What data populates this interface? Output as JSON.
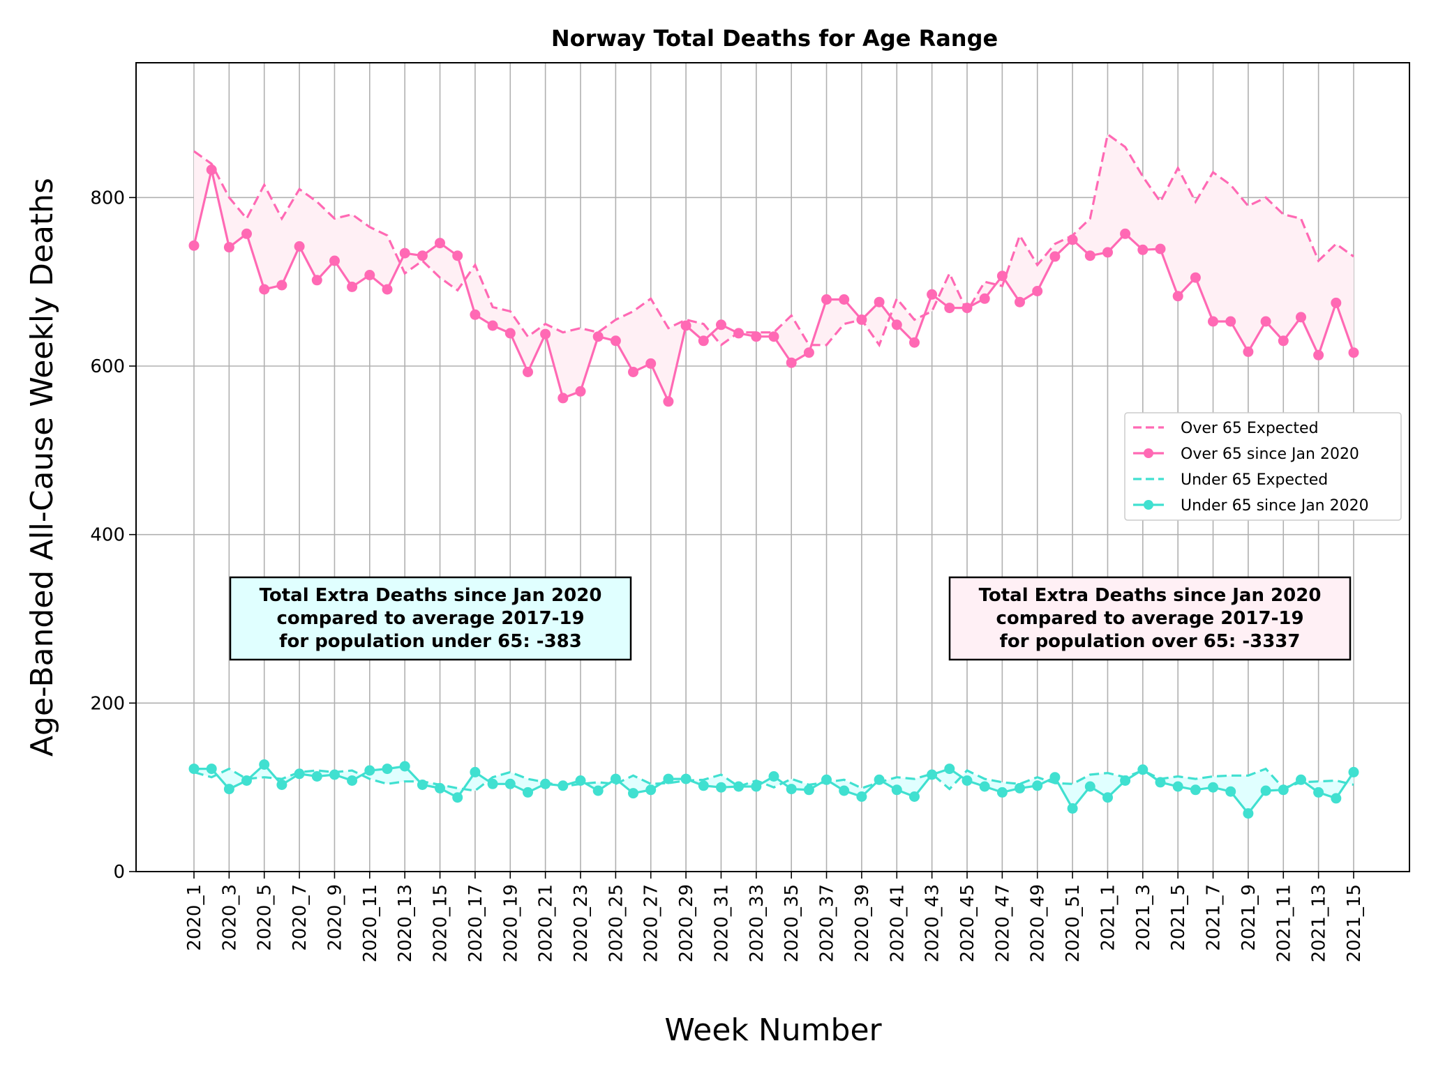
{
  "chart_data": {
    "type": "line",
    "title": "Norway Total Deaths for Age Range",
    "xlabel": "Week Number",
    "ylabel": "Age-Banded All-Cause Weekly Deaths",
    "ylim": [
      0,
      960
    ],
    "yticks": [
      0,
      200,
      400,
      600,
      800
    ],
    "grid": true,
    "legend_position": "center-right",
    "xtick_labels": [
      "2020_1",
      "2020_3",
      "2020_5",
      "2020_7",
      "2020_9",
      "2020_11",
      "2020_13",
      "2020_15",
      "2020_17",
      "2020_19",
      "2020_21",
      "2020_23",
      "2020_25",
      "2020_27",
      "2020_29",
      "2020_31",
      "2020_33",
      "2020_35",
      "2020_37",
      "2020_39",
      "2020_41",
      "2020_43",
      "2020_45",
      "2020_47",
      "2020_49",
      "2020_51",
      "2021_1",
      "2021_3",
      "2021_5",
      "2021_7",
      "2021_9",
      "2021_11",
      "2021_13",
      "2021_15"
    ],
    "series": [
      {
        "name": "Over 65 Expected",
        "style": "dashed",
        "color": "#ff69b4",
        "values": [
          855,
          840,
          800,
          775,
          815,
          775,
          810,
          795,
          775,
          780,
          765,
          755,
          710,
          725,
          705,
          690,
          720,
          670,
          665,
          635,
          650,
          640,
          645,
          640,
          655,
          665,
          680,
          645,
          655,
          650,
          625,
          640,
          640,
          640,
          660,
          625,
          625,
          650,
          655,
          625,
          680,
          655,
          665,
          710,
          665,
          700,
          695,
          755,
          720,
          745,
          755,
          775,
          875,
          860,
          825,
          795,
          835,
          795,
          830,
          815,
          790,
          800,
          780,
          775,
          725,
          745,
          730
        ]
      },
      {
        "name": "Over 65 since Jan 2020",
        "style": "solid-marker",
        "color": "#ff69b4",
        "values": [
          743,
          833,
          741,
          757,
          691,
          696,
          742,
          702,
          725,
          694,
          708,
          691,
          734,
          731,
          746,
          731,
          661,
          648,
          639,
          593,
          638,
          562,
          570,
          635,
          630,
          593,
          603,
          558,
          648,
          630,
          649,
          639,
          635,
          635,
          604,
          616,
          679,
          679,
          655,
          676,
          649,
          628,
          685,
          669,
          669,
          680,
          707,
          676,
          689,
          730,
          750,
          731,
          735,
          757,
          738,
          739,
          683,
          705,
          653,
          653,
          617,
          653,
          630,
          658,
          613,
          675,
          616
        ]
      },
      {
        "name": "Under 65 Expected",
        "style": "dashed",
        "color": "#40e0d0",
        "values": [
          118,
          112,
          122,
          110,
          112,
          110,
          118,
          120,
          118,
          120,
          110,
          104,
          107,
          107,
          103,
          99,
          96,
          112,
          118,
          110,
          106,
          101,
          104,
          106,
          104,
          114,
          104,
          105,
          108,
          109,
          115,
          101,
          108,
          100,
          110,
          103,
          106,
          109,
          99,
          106,
          112,
          110,
          116,
          98,
          120,
          110,
          106,
          104,
          112,
          105,
          104,
          115,
          117,
          112,
          120,
          110,
          113,
          110,
          113,
          114,
          114,
          122,
          99,
          106,
          107,
          108,
          103
        ]
      },
      {
        "name": "Under 65 since Jan 2020",
        "style": "solid-marker",
        "color": "#40e0d0",
        "values": [
          122,
          122,
          98,
          108,
          127,
          103,
          116,
          113,
          115,
          108,
          120,
          122,
          125,
          103,
          99,
          88,
          118,
          104,
          104,
          94,
          104,
          102,
          108,
          96,
          110,
          93,
          97,
          110,
          110,
          102,
          100,
          101,
          101,
          113,
          98,
          97,
          109,
          96,
          89,
          109,
          97,
          89,
          115,
          122,
          108,
          101,
          94,
          99,
          102,
          112,
          75,
          101,
          88,
          108,
          121,
          106,
          101,
          97,
          100,
          95,
          69,
          96,
          97,
          109,
          94,
          87,
          118
        ]
      }
    ],
    "annotations": [
      {
        "lines": [
          "Total Extra Deaths since Jan 2020",
          "compared to average 2017-19",
          "for population under 65: -383"
        ],
        "fill": "#e0ffff"
      },
      {
        "lines": [
          "Total Extra Deaths since Jan 2020",
          "compared to average 2017-19",
          "for population over 65: -3337"
        ],
        "fill": "#fff0f5"
      }
    ]
  }
}
